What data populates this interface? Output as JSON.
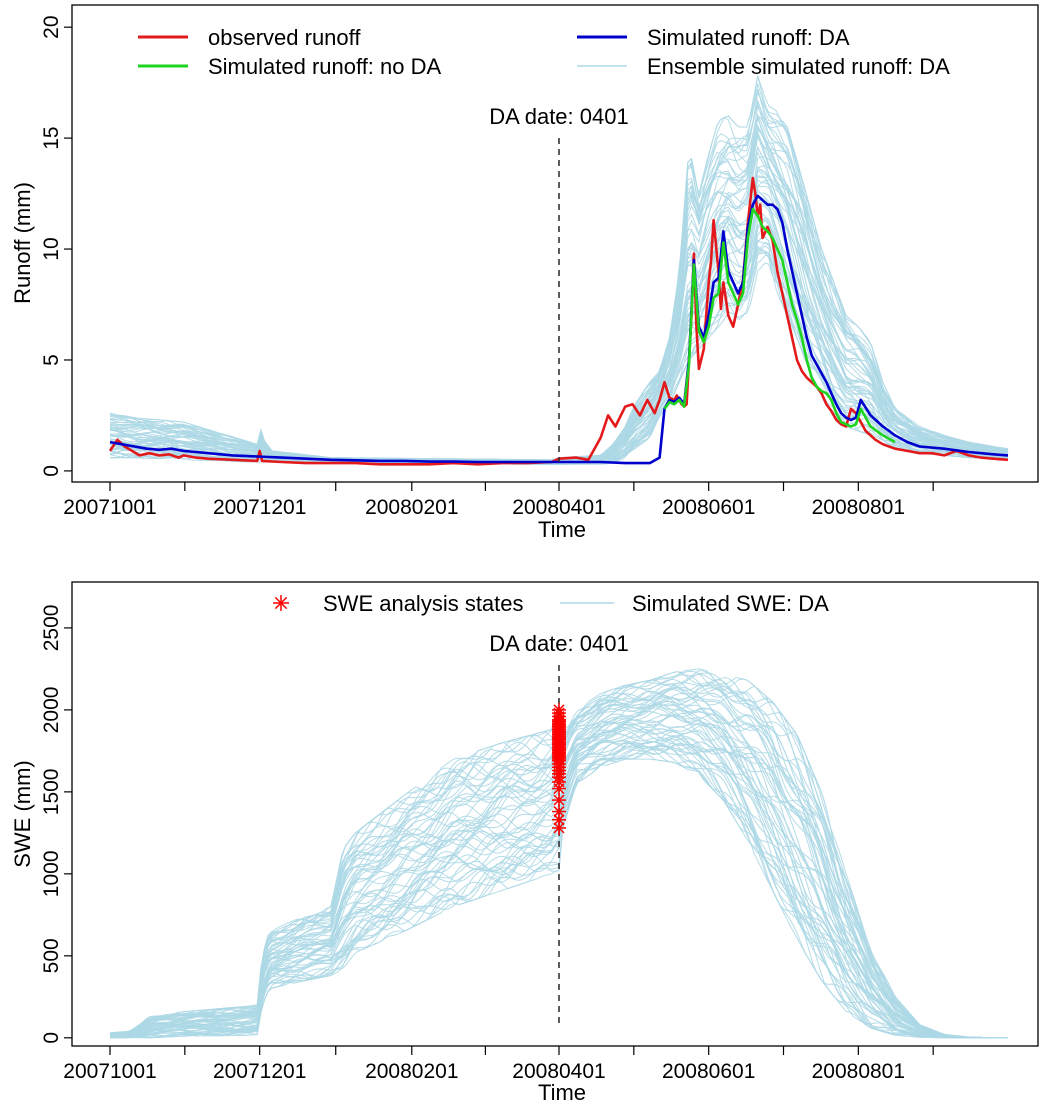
{
  "chart_data": [
    {
      "type": "line",
      "title": "",
      "xlabel": "Time",
      "ylabel": "Runoff (mm)",
      "x_tick_labels": [
        "20071001",
        "20071201",
        "20080201",
        "20080401",
        "20080601",
        "20080801"
      ],
      "x_range_days": [
        0,
        366
      ],
      "ylim": [
        -0.5,
        21
      ],
      "y_ticks": [
        0,
        5,
        10,
        15,
        20
      ],
      "grid": false,
      "legend_position": "top",
      "annotation": {
        "text": "DA date: 0401",
        "x_day": 183,
        "style": "dashed vertical line"
      },
      "legend": [
        {
          "label": "observed runoff",
          "color": "#e31a1c",
          "kind": "line"
        },
        {
          "label": "Simulated runoff: DA",
          "color": "#0000cc",
          "kind": "line"
        },
        {
          "label": "Simulated runoff: no DA",
          "color": "#1ed41e",
          "kind": "line"
        },
        {
          "label": "Ensemble simulated runoff: DA",
          "color": "#add8e6",
          "kind": "line"
        }
      ],
      "series": [
        {
          "name": "observed runoff",
          "color": "#e31a1c",
          "x_day": [
            0,
            3,
            6,
            9,
            12,
            16,
            20,
            24,
            28,
            30,
            35,
            40,
            50,
            60,
            61,
            62,
            70,
            80,
            90,
            100,
            110,
            120,
            130,
            140,
            150,
            160,
            170,
            180,
            183,
            190,
            195,
            200,
            203,
            206,
            210,
            213,
            216,
            219,
            222,
            224,
            226,
            228,
            230,
            231,
            232,
            233,
            234,
            235,
            236,
            237,
            238,
            239,
            240,
            242,
            243,
            244,
            245,
            246,
            248,
            249,
            250,
            252,
            254,
            256,
            258,
            260,
            262,
            263,
            264,
            265,
            266,
            268,
            270,
            272,
            274,
            276,
            278,
            280,
            282,
            284,
            286,
            288,
            290,
            292,
            294,
            296,
            298,
            300,
            302,
            304,
            306,
            308,
            310,
            312,
            315,
            320,
            325,
            330,
            335,
            340,
            345,
            350,
            355,
            360,
            366
          ],
          "y": [
            0.9,
            1.4,
            1.1,
            0.9,
            0.7,
            0.8,
            0.7,
            0.75,
            0.6,
            0.7,
            0.6,
            0.55,
            0.5,
            0.45,
            0.9,
            0.45,
            0.4,
            0.35,
            0.35,
            0.35,
            0.3,
            0.3,
            0.3,
            0.35,
            0.3,
            0.35,
            0.35,
            0.4,
            0.55,
            0.6,
            0.5,
            1.5,
            2.5,
            2.0,
            2.9,
            3.0,
            2.5,
            3.2,
            2.6,
            3.2,
            4.0,
            3.3,
            3.2,
            3.4,
            3.2,
            3.0,
            2.9,
            3.0,
            5.0,
            7.0,
            9.8,
            6.5,
            4.6,
            5.5,
            7.0,
            8.5,
            9.5,
            11.3,
            9.0,
            7.3,
            8.5,
            7.0,
            6.5,
            7.5,
            8.6,
            11.2,
            13.2,
            12.5,
            11.5,
            12.0,
            10.5,
            11.0,
            10.4,
            9.0,
            8.0,
            7.0,
            6.0,
            5.0,
            4.5,
            4.2,
            4.0,
            3.8,
            3.5,
            3.0,
            2.7,
            2.3,
            2.1,
            2.0,
            2.8,
            2.6,
            2.2,
            1.8,
            1.6,
            1.4,
            1.2,
            1.0,
            0.9,
            0.8,
            0.8,
            0.7,
            0.9,
            0.7,
            0.6,
            0.55,
            0.5
          ]
        },
        {
          "name": "Simulated runoff: DA",
          "color": "#0000cc",
          "x_day": [
            0,
            5,
            10,
            15,
            20,
            25,
            30,
            35,
            40,
            50,
            60,
            70,
            80,
            90,
            100,
            110,
            120,
            130,
            140,
            150,
            160,
            170,
            180,
            190,
            200,
            210,
            220,
            224,
            226,
            228,
            230,
            232,
            234,
            236,
            238,
            240,
            242,
            244,
            246,
            248,
            250,
            252,
            254,
            256,
            258,
            260,
            262,
            264,
            266,
            268,
            270,
            272,
            274,
            276,
            278,
            280,
            282,
            284,
            286,
            288,
            290,
            292,
            294,
            296,
            298,
            300,
            302,
            304,
            306,
            310,
            315,
            320,
            325,
            330,
            340,
            350,
            360,
            366
          ],
          "y": [
            1.3,
            1.2,
            1.1,
            1.0,
            0.95,
            1.0,
            0.9,
            0.85,
            0.8,
            0.7,
            0.65,
            0.6,
            0.55,
            0.5,
            0.48,
            0.45,
            0.45,
            0.42,
            0.42,
            0.4,
            0.4,
            0.4,
            0.4,
            0.4,
            0.4,
            0.35,
            0.35,
            0.6,
            2.8,
            3.2,
            3.1,
            3.3,
            3.0,
            5.0,
            9.5,
            6.5,
            6.0,
            7.0,
            8.5,
            8.7,
            10.8,
            9.0,
            8.5,
            8.0,
            8.5,
            11.0,
            12.0,
            12.4,
            12.2,
            12.0,
            12.0,
            11.8,
            11.2,
            10.0,
            9.0,
            8.0,
            7.0,
            6.0,
            5.2,
            4.8,
            4.4,
            4.0,
            3.5,
            3.0,
            2.6,
            2.4,
            2.3,
            2.4,
            3.2,
            2.5,
            2.0,
            1.6,
            1.3,
            1.1,
            1.0,
            0.85,
            0.75,
            0.7
          ]
        },
        {
          "name": "Simulated runoff: no DA",
          "color": "#1ed41e",
          "x_day": [
            226,
            228,
            230,
            232,
            234,
            236,
            238,
            240,
            242,
            244,
            246,
            248,
            250,
            252,
            254,
            256,
            258,
            260,
            262,
            264,
            266,
            268,
            270,
            272,
            274,
            276,
            278,
            280,
            282,
            284,
            286,
            288,
            290,
            292,
            294,
            296,
            298,
            300,
            302,
            304,
            306,
            310,
            315,
            320
          ],
          "y": [
            2.8,
            3.1,
            3.0,
            3.2,
            2.9,
            4.8,
            9.3,
            6.3,
            5.8,
            6.5,
            7.8,
            8.0,
            10.3,
            8.5,
            8.0,
            7.5,
            8.0,
            10.5,
            11.8,
            11.5,
            11.0,
            10.8,
            10.5,
            10.0,
            9.5,
            8.5,
            7.5,
            6.8,
            6.0,
            5.0,
            4.2,
            3.8,
            3.6,
            3.5,
            3.2,
            2.6,
            2.2,
            2.1,
            2.0,
            2.1,
            2.8,
            2.0,
            1.6,
            1.3
          ]
        },
        {
          "name": "Ensemble simulated runoff: DA",
          "color": "#add8e6",
          "kind": "envelope",
          "x_day": [
            0,
            10,
            30,
            60,
            61,
            62,
            66,
            90,
            180,
            183,
            200,
            205,
            210,
            214,
            220,
            224,
            228,
            232,
            236,
            240,
            244,
            248,
            252,
            256,
            260,
            264,
            268,
            272,
            276,
            280,
            285,
            290,
            295,
            300,
            305,
            310,
            315,
            320,
            330,
            340,
            350,
            360,
            366
          ],
          "lower": [
            0.6,
            0.6,
            0.5,
            0.4,
            0.4,
            0.4,
            0.4,
            0.35,
            0.3,
            0.3,
            0.3,
            0.35,
            0.6,
            1.0,
            1.5,
            2.5,
            3.0,
            4.0,
            5.0,
            5.5,
            6.0,
            6.5,
            7.0,
            6.5,
            7.0,
            9.0,
            9.5,
            8.0,
            7.0,
            6.0,
            4.5,
            3.5,
            2.5,
            2.0,
            1.8,
            1.6,
            1.2,
            1.0,
            0.8,
            0.7,
            0.6,
            0.55,
            0.5
          ],
          "upper": [
            2.6,
            2.4,
            2.2,
            1.2,
            2.2,
            1.5,
            0.9,
            0.6,
            0.5,
            0.6,
            0.7,
            1.2,
            2.0,
            3.0,
            4.0,
            4.5,
            6.0,
            9.0,
            14.6,
            12.5,
            14.3,
            15.8,
            16.0,
            15.5,
            15.5,
            17.8,
            16.5,
            16.2,
            15.5,
            14.0,
            12.0,
            10.0,
            8.5,
            7.0,
            6.5,
            5.8,
            4.0,
            2.8,
            2.0,
            1.6,
            1.3,
            1.1,
            1.0
          ]
        }
      ]
    },
    {
      "type": "line",
      "title": "",
      "xlabel": "Time",
      "ylabel": "SWE (mm)",
      "x_tick_labels": [
        "20071001",
        "20071201",
        "20080201",
        "20080401",
        "20080601",
        "20080801"
      ],
      "x_range_days": [
        0,
        366
      ],
      "ylim": [
        -50,
        2780
      ],
      "y_ticks": [
        0,
        500,
        1000,
        1500,
        2000,
        2500
      ],
      "grid": false,
      "legend_position": "top",
      "annotation": {
        "text": "DA date: 0401",
        "x_day": 183,
        "style": "dashed vertical line"
      },
      "legend": [
        {
          "label": "SWE analysis states",
          "color": "#ff0000",
          "kind": "asterisk"
        },
        {
          "label": "Simulated SWE: DA",
          "color": "#add8e6",
          "kind": "line"
        }
      ],
      "series": [
        {
          "name": "Simulated SWE: DA",
          "color": "#add8e6",
          "kind": "envelope",
          "x_day": [
            0,
            8,
            12,
            16,
            30,
            55,
            60,
            62,
            65,
            80,
            90,
            95,
            100,
            120,
            140,
            160,
            180,
            182,
            183,
            184,
            190,
            200,
            210,
            220,
            230,
            240,
            250,
            260,
            270,
            280,
            290,
            300,
            310,
            320,
            330,
            340,
            350,
            360,
            366
          ],
          "lower": [
            0,
            0,
            0,
            0,
            10,
            15,
            20,
            200,
            300,
            350,
            380,
            420,
            520,
            650,
            800,
            900,
            1000,
            1020,
            1020,
            1250,
            1550,
            1650,
            1700,
            1700,
            1680,
            1600,
            1450,
            1200,
            900,
            600,
            350,
            160,
            60,
            15,
            3,
            0,
            0,
            0,
            0
          ],
          "upper": [
            30,
            40,
            80,
            130,
            160,
            190,
            200,
            500,
            650,
            750,
            800,
            1150,
            1250,
            1480,
            1700,
            1800,
            1880,
            2000,
            2040,
            1850,
            2000,
            2100,
            2150,
            2180,
            2230,
            2250,
            2220,
            2180,
            2050,
            1850,
            1500,
            1000,
            550,
            250,
            80,
            20,
            5,
            0,
            0
          ]
        },
        {
          "name": "SWE analysis states",
          "color": "#ff0000",
          "kind": "points",
          "x_day": [
            183,
            183,
            183,
            183,
            183,
            183,
            183,
            183,
            183,
            183,
            183,
            183,
            183,
            183,
            183,
            183,
            183,
            183,
            183,
            183,
            183,
            183,
            183,
            183,
            183,
            183,
            183,
            183,
            183,
            183,
            183,
            183,
            183,
            183,
            183,
            183,
            183,
            183,
            183,
            183
          ],
          "y": [
            1280,
            1330,
            1380,
            1450,
            1520,
            1560,
            1590,
            1610,
            1630,
            1650,
            1670,
            1690,
            1700,
            1710,
            1720,
            1730,
            1740,
            1750,
            1760,
            1770,
            1780,
            1790,
            1800,
            1810,
            1820,
            1830,
            1840,
            1850,
            1860,
            1870,
            1880,
            1890,
            1900,
            1910,
            1920,
            1930,
            1940,
            1960,
            1980,
            2000
          ]
        }
      ]
    }
  ]
}
